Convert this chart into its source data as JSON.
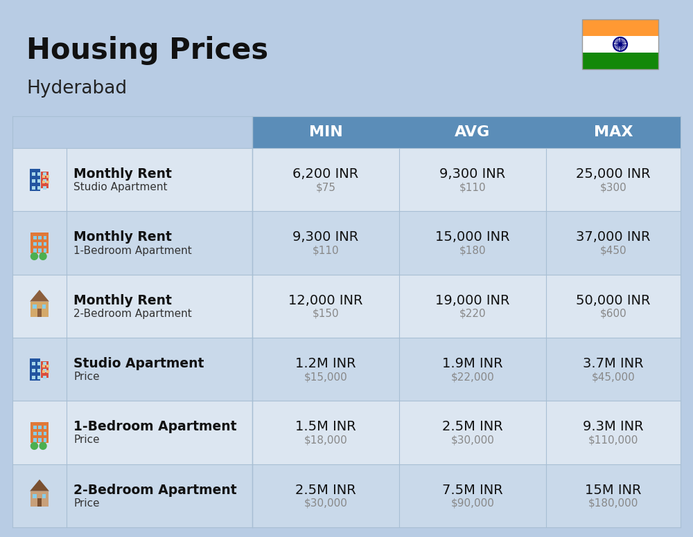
{
  "title": "Housing Prices",
  "subtitle": "Hyderabad",
  "background_color": "#b8cce4",
  "header_bg_color": "#5b8db8",
  "header_left_bg_color": "#b8cce4",
  "header_text_color": "#ffffff",
  "row_bg_colors": [
    "#dce6f1",
    "#c9d9ea"
  ],
  "col_headers": [
    "MIN",
    "AVG",
    "MAX"
  ],
  "rows": [
    {
      "bold_label": "Monthly Rent",
      "sub_label": "Studio Apartment",
      "emoji": "studio_blue",
      "min_main": "6,200 INR",
      "min_sub": "$75",
      "avg_main": "9,300 INR",
      "avg_sub": "$110",
      "max_main": "25,000 INR",
      "max_sub": "$300"
    },
    {
      "bold_label": "Monthly Rent",
      "sub_label": "1-Bedroom Apartment",
      "emoji": "apartment_orange",
      "min_main": "9,300 INR",
      "min_sub": "$110",
      "avg_main": "15,000 INR",
      "avg_sub": "$180",
      "max_main": "37,000 INR",
      "max_sub": "$450"
    },
    {
      "bold_label": "Monthly Rent",
      "sub_label": "2-Bedroom Apartment",
      "emoji": "house_beige",
      "min_main": "12,000 INR",
      "min_sub": "$150",
      "avg_main": "19,000 INR",
      "avg_sub": "$220",
      "max_main": "50,000 INR",
      "max_sub": "$600"
    },
    {
      "bold_label": "Studio Apartment",
      "sub_label": "Price",
      "emoji": "studio_blue",
      "min_main": "1.2M INR",
      "min_sub": "$15,000",
      "avg_main": "1.9M INR",
      "avg_sub": "$22,000",
      "max_main": "3.7M INR",
      "max_sub": "$45,000"
    },
    {
      "bold_label": "1-Bedroom Apartment",
      "sub_label": "Price",
      "emoji": "apartment_orange",
      "min_main": "1.5M INR",
      "min_sub": "$18,000",
      "avg_main": "2.5M INR",
      "avg_sub": "$30,000",
      "max_main": "9.3M INR",
      "max_sub": "$110,000"
    },
    {
      "bold_label": "2-Bedroom Apartment",
      "sub_label": "Price",
      "emoji": "house_brown",
      "min_main": "2.5M INR",
      "min_sub": "$30,000",
      "avg_main": "7.5M INR",
      "avg_sub": "$90,000",
      "max_main": "15M INR",
      "max_sub": "$180,000"
    }
  ]
}
